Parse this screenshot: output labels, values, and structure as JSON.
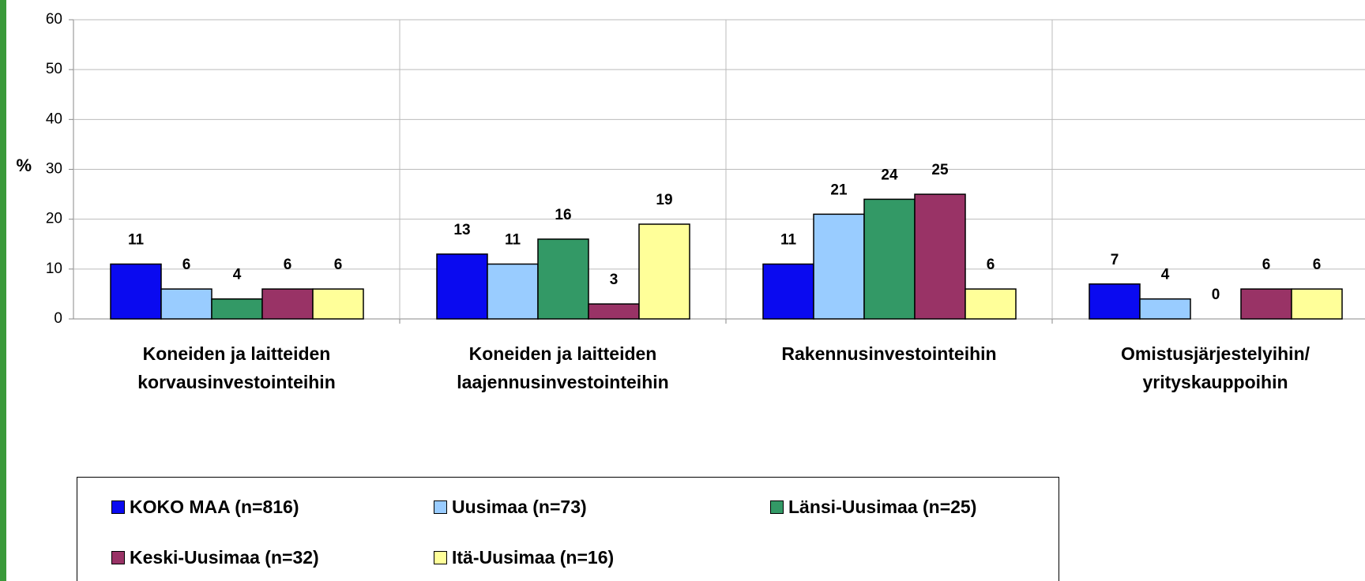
{
  "chart_data": {
    "type": "bar",
    "ylabel": "%",
    "categories": [
      "Koneiden ja laitteiden\nkorvausinvestointeihin",
      "Koneiden ja laitteiden\nlaajennusinvestointeihin",
      "Rakennusinvestointeihin",
      "Omistusjärjestelyihin/\nyrityskauppoihin"
    ],
    "series": [
      {
        "name": "KOKO MAA (n=816)",
        "color": "#0a0af0",
        "values": [
          11,
          13,
          11,
          7
        ]
      },
      {
        "name": "Uusimaa (n=73)",
        "color": "#99ccff",
        "values": [
          6,
          11,
          21,
          4
        ]
      },
      {
        "name": "Länsi-Uusimaa (n=25)",
        "color": "#339966",
        "values": [
          4,
          16,
          24,
          0
        ]
      },
      {
        "name": "Keski-Uusimaa (n=32)",
        "color": "#993366",
        "values": [
          6,
          3,
          25,
          6
        ]
      },
      {
        "name": "Itä-Uusimaa (n=16)",
        "color": "#ffff99",
        "values": [
          6,
          19,
          6,
          6
        ]
      }
    ],
    "ylim": [
      0,
      60
    ],
    "yticks": [
      0,
      10,
      20,
      30,
      40,
      50,
      60
    ],
    "grid": true,
    "legend": "bottom"
  }
}
